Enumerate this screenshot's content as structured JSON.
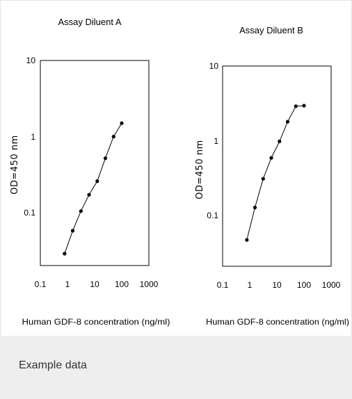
{
  "chart_data": [
    {
      "type": "line",
      "title": "Assay Diluent A",
      "xlabel": "Human GDF-8 concentration (ng/ml)",
      "ylabel": "OD=450 nm",
      "xscale": "log",
      "yscale": "log",
      "xlim": [
        0.1,
        1000
      ],
      "ylim": [
        0.02,
        10
      ],
      "xticks": [
        "0.1",
        "1",
        "10",
        "100",
        "1000"
      ],
      "yticks": [
        "0.1",
        "1",
        "10"
      ],
      "series": [
        {
          "markers": "filled-circle",
          "x": [
            0.78,
            1.56,
            3.12,
            6.25,
            12.5,
            25,
            50,
            100
          ],
          "y": [
            0.029,
            0.058,
            0.105,
            0.172,
            0.26,
            0.52,
            1.0,
            1.5
          ]
        }
      ]
    },
    {
      "type": "line",
      "title": "Assay Diluent B",
      "xlabel": "Human GDF-8 concentration (ng/ml)",
      "ylabel": "OD=450 nm",
      "xscale": "log",
      "yscale": "log",
      "xlim": [
        0.1,
        1000
      ],
      "ylim": [
        0.02,
        10
      ],
      "xticks": [
        "0.1",
        "1",
        "10",
        "100",
        "1000"
      ],
      "yticks": [
        "0.1",
        "1",
        "10"
      ],
      "series": [
        {
          "markers": "filled-circle",
          "x": [
            0.78,
            1.56,
            3.12,
            6.25,
            12.5,
            25,
            50,
            100
          ],
          "y": [
            0.047,
            0.128,
            0.31,
            0.59,
            0.98,
            1.8,
            2.9,
            2.95
          ]
        }
      ]
    }
  ],
  "caption": "Example data"
}
